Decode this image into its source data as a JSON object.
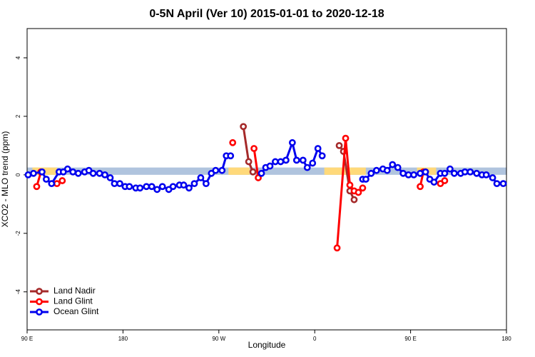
{
  "chart_data": {
    "type": "line",
    "title": "0-5N April (Ver 10)   2015-01-01 to 2020-12-18",
    "x_label": "Longitude",
    "y_label": "XCO2 - MLO trend (ppm)",
    "xlim": [
      90,
      540
    ],
    "xticks": [
      {
        "value": 90,
        "label": "90 E"
      },
      180,
      {
        "value": 270,
        "label": "90 W"
      },
      {
        "value": 360,
        "label": "0"
      },
      {
        "value": 450,
        "label": "90 E"
      },
      {
        "value": 540,
        "label": "180"
      }
    ],
    "ylim": [
      -5.3,
      5.0
    ],
    "yticks": [
      -4,
      -2,
      0,
      2,
      4
    ],
    "legend": "bottom-left",
    "band": {
      "ylim": [
        0,
        0.25
      ],
      "ocean_color": "#b0c4de",
      "land_color": "#ffd97a",
      "land": [
        [
          95,
          118
        ],
        [
          279,
          299
        ],
        [
          369,
          408
        ],
        [
          456,
          474
        ]
      ]
    },
    "series": [
      {
        "name": "Land Nadir",
        "color": "#a52a2a",
        "x": [
          293,
          298,
          302,
          340,
          383,
          387,
          393,
          397
        ],
        "values": [
          1.65,
          0.45,
          0.1,
          null,
          1.0,
          0.8,
          -0.55,
          -0.85
        ]
      },
      {
        "name": "Land Glint",
        "color": "#ff0000",
        "x": [
          99,
          103,
          110,
          118,
          123,
          200,
          283,
          295,
          303,
          307,
          350,
          381,
          389,
          393,
          397,
          401,
          405,
          430,
          459,
          462,
          470,
          478,
          482
        ],
        "values": [
          -0.4,
          0.1,
          null,
          -0.3,
          -0.2,
          null,
          1.1,
          null,
          0.9,
          -0.1,
          null,
          -2.5,
          1.25,
          -0.35,
          -0.55,
          -0.6,
          -0.45,
          null,
          -0.4,
          0.1,
          null,
          -0.3,
          -0.2
        ]
      },
      {
        "name": "Ocean Glint",
        "color": "#0000ee",
        "x": [
          91,
          96,
          104,
          108,
          113,
          120,
          124,
          128,
          133,
          138,
          144,
          148,
          152,
          158,
          163,
          168,
          172,
          177,
          182,
          186,
          192,
          196,
          202,
          207,
          212,
          217,
          223,
          227,
          233,
          237,
          242,
          247,
          253,
          258,
          263,
          267,
          273,
          277,
          281,
          295,
          310,
          314,
          318,
          323,
          328,
          333,
          339,
          343,
          349,
          353,
          358,
          363,
          367,
          385,
          405,
          408,
          413,
          418,
          424,
          428,
          433,
          438,
          443,
          448,
          453,
          459,
          464,
          468,
          472,
          478,
          482,
          487,
          491,
          497,
          501,
          506,
          512,
          517,
          521,
          527,
          531,
          537
        ],
        "values": [
          0,
          0.05,
          0.1,
          -0.15,
          -0.3,
          0.1,
          0.1,
          0.2,
          0.1,
          0.05,
          0.1,
          0.15,
          0.05,
          0.05,
          0,
          -0.1,
          -0.3,
          -0.3,
          -0.4,
          -0.4,
          -0.45,
          -0.45,
          -0.4,
          -0.4,
          -0.5,
          -0.4,
          -0.5,
          -0.4,
          -0.35,
          -0.35,
          -0.45,
          -0.3,
          -0.1,
          -0.3,
          0.05,
          0.15,
          0.15,
          0.65,
          0.65,
          null,
          0.05,
          0.25,
          0.3,
          0.45,
          0.45,
          0.5,
          1.1,
          0.5,
          0.5,
          0.25,
          0.4,
          0.9,
          0.65,
          null,
          -0.15,
          -0.15,
          0.05,
          0.15,
          0.2,
          0.15,
          0.35,
          0.25,
          0.05,
          0,
          0,
          0.05,
          0.1,
          -0.15,
          -0.25,
          0.05,
          0.05,
          0.2,
          0.05,
          0.05,
          0.1,
          0.1,
          0.05,
          0,
          0,
          -0.1,
          -0.3,
          -0.3
        ]
      }
    ]
  }
}
